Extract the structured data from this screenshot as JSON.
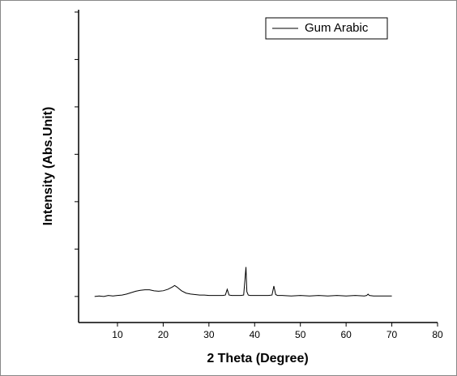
{
  "chart_data": {
    "type": "line",
    "xlabel": "2 Theta (Degree)",
    "ylabel": "Intensity (Abs.Unit)",
    "x": [
      5,
      6,
      7,
      8,
      9,
      10,
      11,
      12,
      13,
      14,
      15,
      16,
      17,
      18,
      19,
      20,
      21,
      22,
      22.5,
      23,
      24,
      25,
      26,
      27,
      28,
      29,
      30,
      31,
      32,
      33,
      33.6,
      34,
      34.4,
      35,
      36,
      37,
      37.6,
      37.9,
      38.1,
      38.3,
      38.6,
      39,
      40,
      41,
      42,
      43,
      43.8,
      44.2,
      44.6,
      45,
      46,
      48,
      50,
      52,
      54,
      56,
      58,
      60,
      62,
      64,
      64.5,
      64.8,
      65.1,
      66,
      68,
      70
    ],
    "series": [
      {
        "name": "Gum Arabic",
        "color": "#000000",
        "values": [
          0,
          0.01,
          0,
          0.02,
          0.01,
          0.02,
          0.03,
          0.05,
          0.08,
          0.11,
          0.13,
          0.14,
          0.14,
          0.12,
          0.11,
          0.12,
          0.15,
          0.2,
          0.23,
          0.2,
          0.12,
          0.07,
          0.05,
          0.04,
          0.03,
          0.03,
          0.02,
          0.02,
          0.02,
          0.02,
          0.03,
          0.15,
          0.03,
          0.02,
          0.02,
          0.02,
          0.03,
          0.38,
          0.62,
          0.1,
          0.03,
          0.02,
          0.02,
          0.02,
          0.02,
          0.02,
          0.03,
          0.22,
          0.04,
          0.02,
          0.02,
          0.01,
          0.02,
          0.01,
          0.02,
          0.01,
          0.02,
          0.01,
          0.02,
          0.01,
          0.02,
          0.05,
          0.02,
          0.01,
          0.01,
          0.01
        ]
      }
    ],
    "xlim": [
      1.5,
      80
    ],
    "xticks": [
      10,
      20,
      30,
      40,
      50,
      60,
      70,
      80
    ],
    "ylim": [
      -0.55,
      6.05
    ],
    "yticks": [
      0,
      1,
      2,
      3,
      4,
      5,
      6
    ],
    "legend": "upper right"
  }
}
